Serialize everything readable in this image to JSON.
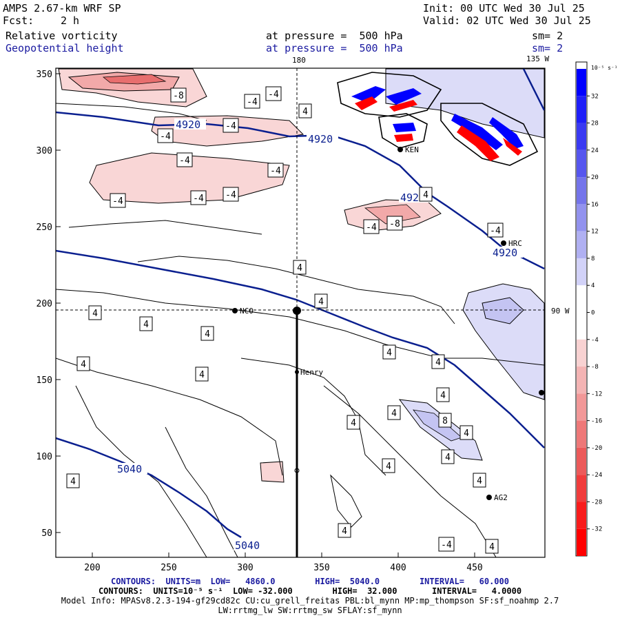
{
  "header": {
    "model": "AMPS 2.67-km WRF SP",
    "fcst_label": "Fcst:",
    "fcst_value": "2 h",
    "init": "Init: 00 UTC Wed 30 Jul 25",
    "valid": "Valid: 02 UTC Wed 30 Jul 25",
    "field1": "Relative vorticity",
    "field2": "Geopotential height",
    "press1": "at pressure =  500 hPa",
    "press2": "at pressure =  500 hPa",
    "sm1": "sm= 2",
    "sm2": "sm= 2"
  },
  "colors": {
    "height_contour": "#0a1f8f",
    "vort_pos_strong": "#0000ff",
    "vort_neg_strong": "#ff0000"
  },
  "axes": {
    "x_ticks": [
      "200",
      "250",
      "300",
      "350",
      "400",
      "450"
    ],
    "y_ticks": [
      "350",
      "300",
      "250",
      "200",
      "150",
      "100",
      "50"
    ],
    "top_lon_180": "180",
    "top_lon_135": "135 W",
    "right_lon_90": "90 W"
  },
  "stations": {
    "nco": "NCO",
    "henry": "Henry",
    "ken": "KEN",
    "hrc": "HRC",
    "ag2": "AG2"
  },
  "height_labels": {
    "h4920": "4920",
    "h5040": "5040"
  },
  "vort_labels": {
    "neg4": "-4",
    "neg8": "-8",
    "pos4": "4",
    "pos8": "8"
  },
  "colorbar": {
    "unit": "10⁻⁵ s⁻¹",
    "ticks": [
      "32",
      "28",
      "24",
      "20",
      "16",
      "12",
      "8",
      "4",
      "0",
      "-4",
      "-8",
      "-12",
      "-16",
      "-20",
      "-24",
      "-28",
      "-32"
    ]
  },
  "footer": {
    "line1": "CONTOURS:  UNITS=m  LOW=   4860.0        HIGH=  5040.0        INTERVAL=   60.000",
    "line2": "CONTOURS:  UNITS=10⁻⁵ s⁻¹  LOW= -32.000        HIGH=  32.000       INTERVAL=   4.0000",
    "line3": "Model Info: MPASv8.2.3-194-gf29cd82c CU:cu_grell_freitas PBL:bl_mynn MP:mp_thompson SF:sf_noahmp 2.7",
    "line4": "LW:rrtmg_lw SW:rrtmg_sw SFLAY:sf_mynn"
  }
}
